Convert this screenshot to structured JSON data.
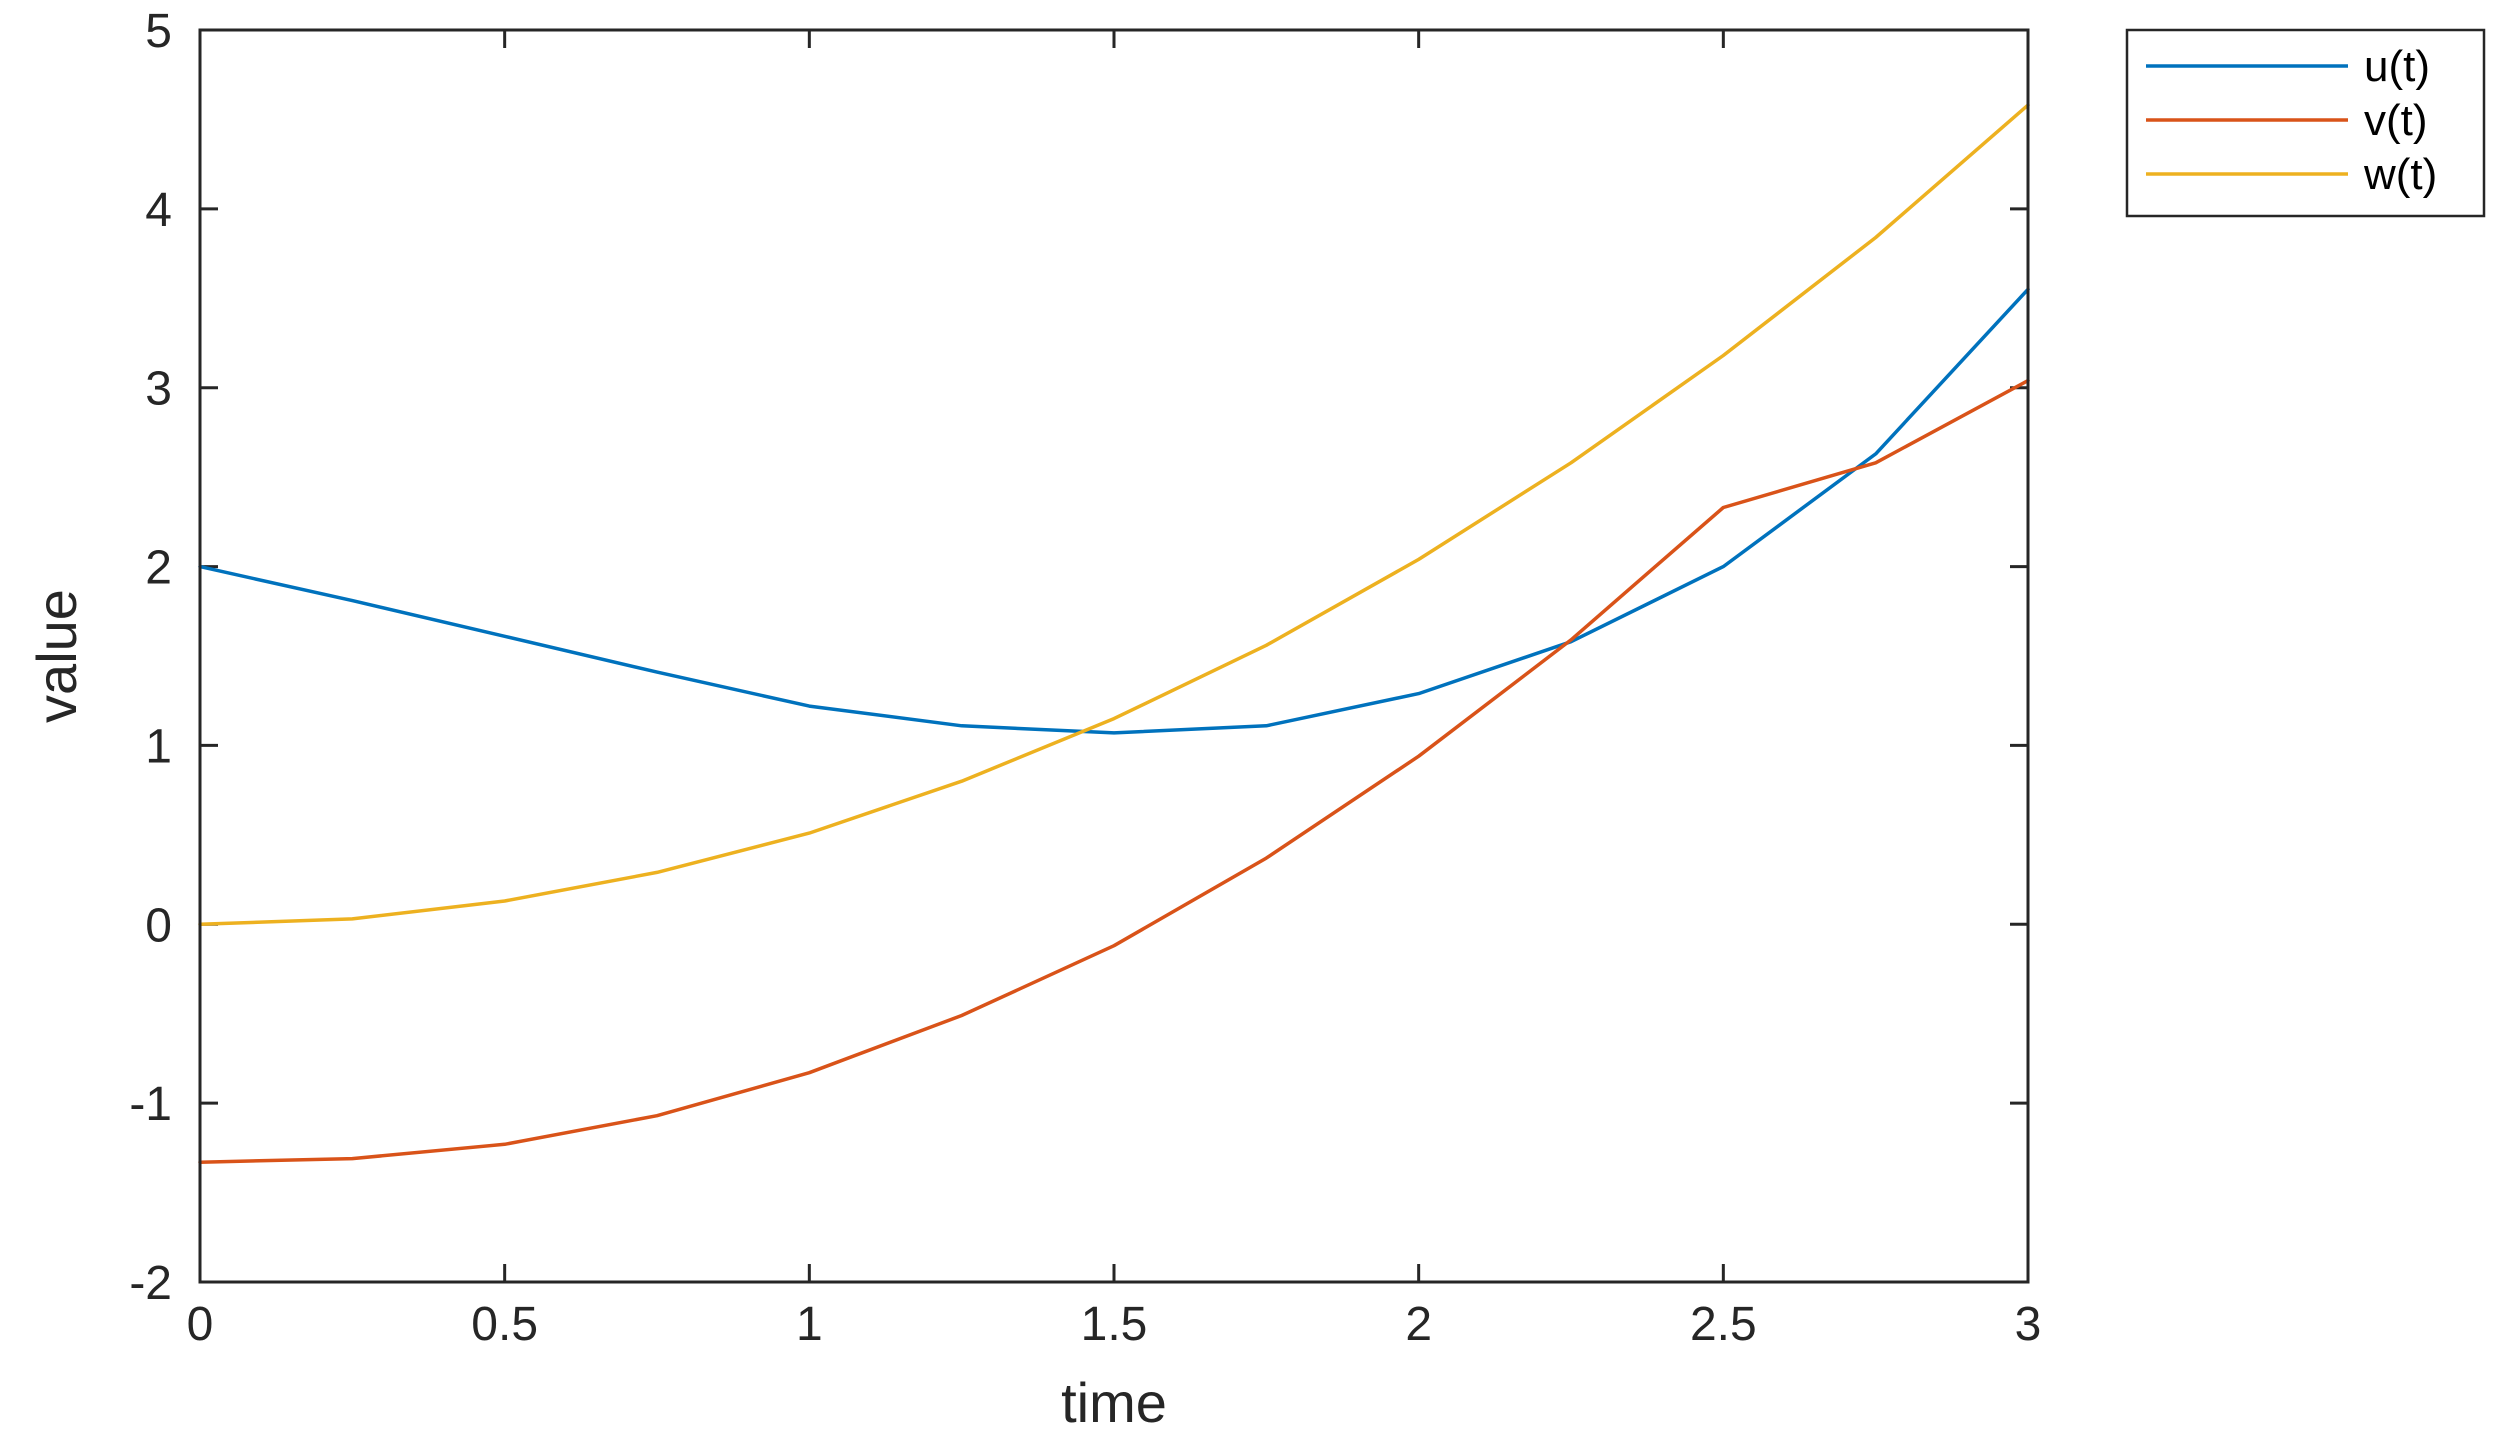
{
  "chart_data": {
    "type": "line",
    "title": "",
    "xlabel": "time",
    "ylabel": "value",
    "xlim": [
      0,
      3
    ],
    "ylim": [
      -2,
      5
    ],
    "xticks": [
      0,
      0.5,
      1,
      1.5,
      2,
      2.5,
      3
    ],
    "xtick_labels": [
      "0",
      "0.5",
      "1",
      "1.5",
      "2",
      "2.5",
      "3"
    ],
    "yticks": [
      -2,
      -1,
      0,
      1,
      2,
      3,
      4,
      5
    ],
    "ytick_labels": [
      "-2",
      "-1",
      "0",
      "1",
      "2",
      "3",
      "4",
      "5"
    ],
    "grid": false,
    "legend_position": "outside-top-right",
    "series": [
      {
        "name": "u(t)",
        "color": "#0072BD",
        "x": [
          0,
          0.25,
          0.5,
          0.75,
          1.0,
          1.25,
          1.5,
          1.75,
          2.0,
          2.25,
          2.5,
          2.75,
          3.0
        ],
        "y": [
          2.0,
          1.81,
          1.61,
          1.41,
          1.22,
          1.11,
          1.07,
          1.11,
          1.29,
          1.58,
          2.0,
          2.63,
          3.55
        ]
      },
      {
        "name": "v(t)",
        "color": "#D95319",
        "x": [
          0,
          0.25,
          0.5,
          0.75,
          1.0,
          1.25,
          1.5,
          1.75,
          2.0,
          2.25,
          2.5,
          2.75,
          3.0
        ],
        "y": [
          -1.33,
          -1.31,
          -1.23,
          -1.07,
          -0.83,
          -0.51,
          -0.12,
          0.37,
          0.94,
          1.59,
          2.33,
          2.58,
          3.04
        ]
      },
      {
        "name": "w(t)",
        "color": "#EDB120",
        "x": [
          0,
          0.25,
          0.5,
          0.75,
          1.0,
          1.25,
          1.5,
          1.75,
          2.0,
          2.25,
          2.5,
          2.75,
          3.0
        ],
        "y": [
          0.0,
          0.03,
          0.13,
          0.29,
          0.51,
          0.8,
          1.15,
          1.56,
          2.04,
          2.58,
          3.18,
          3.84,
          4.58
        ]
      }
    ]
  }
}
